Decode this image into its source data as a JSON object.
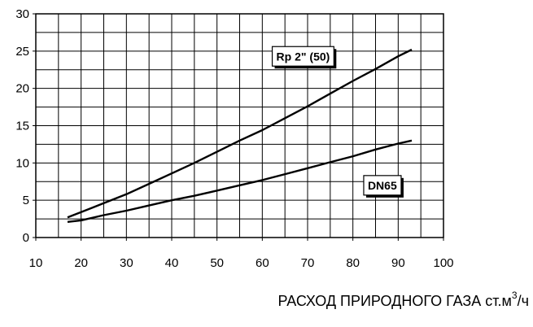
{
  "chart_data": {
    "type": "line",
    "title": "",
    "xlabel_main": "РАСХОД ПРИРОДНОГО ГАЗА ст.м",
    "xlabel_sup": "3",
    "xlabel_tail": "/ч",
    "ylabel": "",
    "xlim": [
      10,
      100
    ],
    "ylim": [
      0,
      30
    ],
    "x_ticks": [
      10,
      20,
      30,
      40,
      50,
      60,
      70,
      80,
      90,
      100
    ],
    "y_ticks": [
      0,
      5,
      10,
      15,
      20,
      25,
      30
    ],
    "x_minor_step": 5,
    "y_minor_step": 2.5,
    "grid": true,
    "series": [
      {
        "name": "Rp 2\" (50)",
        "color": "#000000",
        "x": [
          17,
          20,
          25,
          30,
          35,
          40,
          45,
          50,
          55,
          60,
          65,
          70,
          75,
          80,
          85,
          90,
          93
        ],
        "y": [
          2.7,
          3.4,
          4.6,
          5.8,
          7.2,
          8.6,
          10.0,
          11.5,
          13.0,
          14.4,
          16.0,
          17.6,
          19.3,
          21.0,
          22.6,
          24.3,
          25.2
        ]
      },
      {
        "name": "DN65",
        "color": "#000000",
        "x": [
          17,
          20,
          25,
          30,
          35,
          40,
          45,
          50,
          55,
          60,
          65,
          70,
          75,
          80,
          85,
          90,
          93
        ],
        "y": [
          2.1,
          2.3,
          3.0,
          3.6,
          4.3,
          5.0,
          5.6,
          6.3,
          7.0,
          7.7,
          8.5,
          9.3,
          10.1,
          10.9,
          11.8,
          12.6,
          13.0
        ]
      }
    ],
    "annotations": [
      {
        "text": "Rp 2\" (50)",
        "series_index": 0,
        "x": 69,
        "y": 24.3
      },
      {
        "text": "DN65",
        "series_index": 1,
        "x": 86.5,
        "y": 7.0
      }
    ]
  }
}
